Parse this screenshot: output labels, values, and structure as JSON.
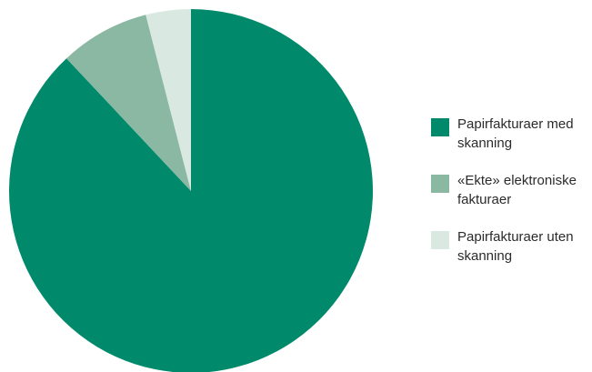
{
  "chart_data": {
    "type": "pie",
    "start_angle_deg": 0,
    "direction": "clockwise",
    "slices": [
      {
        "label": "Papirfakturaer med skanning",
        "value": 88,
        "color": "#00896a"
      },
      {
        "label": "«Ekte» elektroniske fakturaer",
        "value": 8,
        "color": "#8ab8a3"
      },
      {
        "label": "Papirfakturaer uten skanning",
        "value": 4,
        "color": "#d9e8e1"
      }
    ],
    "legend_position": "right"
  }
}
